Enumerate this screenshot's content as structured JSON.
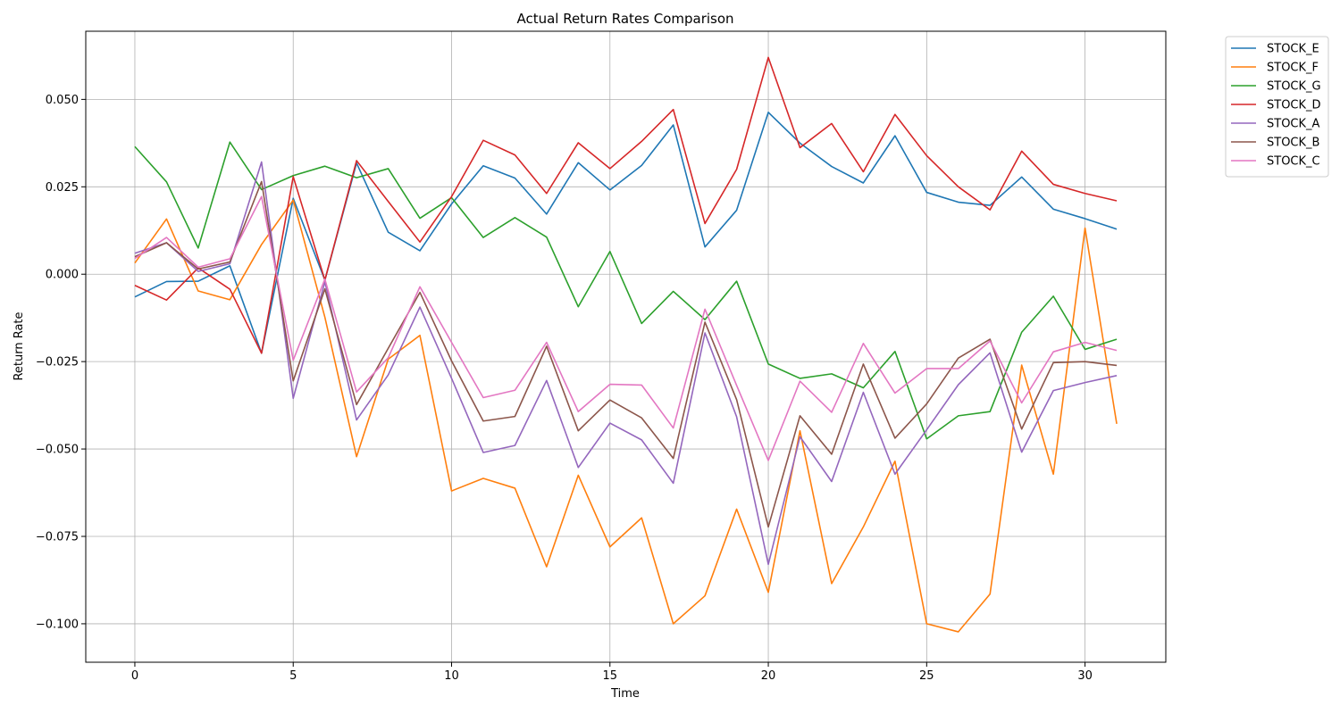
{
  "chart_data": {
    "type": "line",
    "title": "Actual Return Rates Comparison",
    "xlabel": "Time",
    "ylabel": "Return Rate",
    "xlim": [
      -1.55,
      32.55
    ],
    "ylim": [
      -0.111,
      0.0695
    ],
    "xticks": [
      0,
      5,
      10,
      15,
      20,
      25,
      30
    ],
    "xtick_labels": [
      "0",
      "5",
      "10",
      "15",
      "20",
      "25",
      "30"
    ],
    "yticks": [
      -0.1,
      -0.075,
      -0.05,
      -0.025,
      0.0,
      0.025,
      0.05
    ],
    "ytick_labels": [
      "−0.100",
      "−0.075",
      "−0.050",
      "−0.025",
      "0.000",
      "0.025",
      "0.050"
    ],
    "grid": true,
    "legend_placement": "outside-top-right",
    "x": [
      0,
      1,
      2,
      3,
      4,
      5,
      6,
      7,
      8,
      9,
      10,
      11,
      12,
      13,
      14,
      15,
      16,
      17,
      18,
      19,
      20,
      21,
      22,
      23,
      24,
      25,
      26,
      27,
      28,
      29,
      30,
      31
    ],
    "series": [
      {
        "name": "STOCK_E",
        "color": "#1f77b4",
        "values": [
          -0.0065,
          -0.0021,
          -0.002,
          0.0024,
          -0.0226,
          0.0217,
          -0.0017,
          0.0318,
          0.012,
          0.0067,
          0.0201,
          0.031,
          0.0275,
          0.0172,
          0.0319,
          0.0241,
          0.0311,
          0.0427,
          0.0078,
          0.0183,
          0.0463,
          0.0375,
          0.0308,
          0.0261,
          0.0396,
          0.0234,
          0.0206,
          0.0197,
          0.0278,
          0.0186,
          0.0159,
          0.0129
        ]
      },
      {
        "name": "STOCK_F",
        "color": "#ff7f0e",
        "values": [
          0.0032,
          0.0158,
          -0.0048,
          -0.0073,
          0.0085,
          0.0212,
          -0.0123,
          -0.0522,
          -0.0243,
          -0.0175,
          -0.062,
          -0.0584,
          -0.0612,
          -0.0837,
          -0.0575,
          -0.078,
          -0.0697,
          -0.1,
          -0.092,
          -0.0672,
          -0.091,
          -0.0448,
          -0.0885,
          -0.0723,
          -0.0535,
          -0.1,
          -0.1023,
          -0.0915,
          -0.026,
          -0.0572,
          0.0132,
          -0.0428
        ]
      },
      {
        "name": "STOCK_G",
        "color": "#2ca02c",
        "values": [
          0.0365,
          0.0264,
          0.0075,
          0.0378,
          0.0242,
          0.0282,
          0.0309,
          0.0276,
          0.0302,
          0.016,
          0.0219,
          0.0105,
          0.0162,
          0.0106,
          -0.0093,
          0.0065,
          -0.0141,
          -0.0049,
          -0.013,
          -0.002,
          -0.0257,
          -0.0298,
          -0.0285,
          -0.0325,
          -0.0221,
          -0.0471,
          -0.0405,
          -0.0393,
          -0.0166,
          -0.0063,
          -0.0215,
          -0.0186
        ]
      },
      {
        "name": "STOCK_D",
        "color": "#d62728",
        "values": [
          -0.0032,
          -0.0074,
          0.0018,
          -0.0043,
          -0.0226,
          0.0279,
          -0.0017,
          0.0325,
          0.0208,
          0.0092,
          0.0222,
          0.0383,
          0.0341,
          0.0231,
          0.0376,
          0.0302,
          0.038,
          0.0471,
          0.0145,
          0.03,
          0.062,
          0.0362,
          0.0431,
          0.0293,
          0.0457,
          0.0339,
          0.025,
          0.0184,
          0.0352,
          0.0257,
          0.0231,
          0.021
        ]
      },
      {
        "name": "STOCK_A",
        "color": "#9467bd",
        "values": [
          0.006,
          0.009,
          0.0008,
          0.003,
          0.0321,
          -0.0355,
          -0.0022,
          -0.0417,
          -0.0288,
          -0.0094,
          -0.0298,
          -0.051,
          -0.049,
          -0.0304,
          -0.0553,
          -0.0426,
          -0.0474,
          -0.0598,
          -0.0168,
          -0.0408,
          -0.083,
          -0.0465,
          -0.0593,
          -0.0338,
          -0.0572,
          -0.0445,
          -0.0316,
          -0.0225,
          -0.0509,
          -0.0333,
          -0.031,
          -0.029
        ]
      },
      {
        "name": "STOCK_B",
        "color": "#8c564b",
        "values": [
          0.005,
          0.009,
          0.0015,
          0.0035,
          0.0265,
          -0.0305,
          -0.0042,
          -0.0373,
          -0.0212,
          -0.0052,
          -0.0248,
          -0.042,
          -0.0407,
          -0.0206,
          -0.0448,
          -0.036,
          -0.0411,
          -0.0527,
          -0.0137,
          -0.0359,
          -0.0723,
          -0.0405,
          -0.0515,
          -0.0257,
          -0.0469,
          -0.0371,
          -0.024,
          -0.0186,
          -0.0443,
          -0.0253,
          -0.025,
          -0.0261
        ]
      },
      {
        "name": "STOCK_C",
        "color": "#e377c2",
        "values": [
          0.0045,
          0.0105,
          0.002,
          0.0044,
          0.0222,
          -0.0246,
          -0.0014,
          -0.0337,
          -0.0239,
          -0.0036,
          -0.0195,
          -0.0353,
          -0.0332,
          -0.0195,
          -0.0393,
          -0.0315,
          -0.0317,
          -0.044,
          -0.01,
          -0.0318,
          -0.0533,
          -0.0306,
          -0.0395,
          -0.0198,
          -0.034,
          -0.027,
          -0.027,
          -0.0191,
          -0.0368,
          -0.0222,
          -0.0195,
          -0.0218
        ]
      }
    ]
  }
}
